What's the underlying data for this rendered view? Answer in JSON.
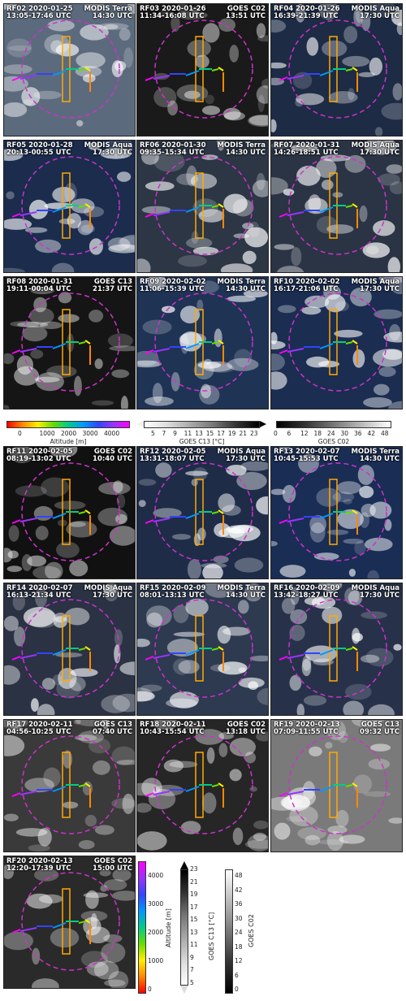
{
  "panels": [
    {
      "id": "RF02",
      "date": "2020-01-25",
      "times": "13:05-17:46 UTC",
      "sat": "MODIS Terra",
      "sat_time": "14:30 UTC",
      "bg": "#5c6a7d"
    },
    {
      "id": "RF03",
      "date": "2020-01-26",
      "times": "11:34-16:08 UTC",
      "sat": "GOES C02",
      "sat_time": "13:51 UTC",
      "bg": "#1a1a1a"
    },
    {
      "id": "RF04",
      "date": "2020-01-26",
      "times": "16:39-21:39 UTC",
      "sat": "MODIS Aqua",
      "sat_time": "17:30 UTC",
      "bg": "#1d2b45"
    },
    {
      "id": "RF05",
      "date": "2020-01-28",
      "times": "20:13-00:55 UTC",
      "sat": "MODIS Aqua",
      "sat_time": "17:30 UTC",
      "bg": "#1b2c4d"
    },
    {
      "id": "RF06",
      "date": "2020-01-30",
      "times": "09:35-15:34 UTC",
      "sat": "MODIS Terra",
      "sat_time": "14:30 UTC",
      "bg": "#2c3645"
    },
    {
      "id": "RF07",
      "date": "2020-01-31",
      "times": "14:26-18:51 UTC",
      "sat": "MODIS Aqua",
      "sat_time": "17:30 UTC",
      "bg": "#2b3444"
    },
    {
      "id": "RF08",
      "date": "2020-01-31",
      "times": "19:11-00:04 UTC",
      "sat": "GOES C13",
      "sat_time": "21:37 UTC",
      "bg": "#151515"
    },
    {
      "id": "RF09",
      "date": "2020-02-02",
      "times": "11:06-15:39 UTC",
      "sat": "MODIS Terra",
      "sat_time": "14:30 UTC",
      "bg": "#1f3355"
    },
    {
      "id": "RF10",
      "date": "2020-02-02",
      "times": "16:17-21:06 UTC",
      "sat": "MODIS Aqua",
      "sat_time": "17:30 UTC",
      "bg": "#1b2d50"
    },
    {
      "id": "RF11",
      "date": "2020-02-05",
      "times": "08:19-13:02 UTC",
      "sat": "GOES C02",
      "sat_time": "10:40 UTC",
      "bg": "#111111"
    },
    {
      "id": "RF12",
      "date": "2020-02-05",
      "times": "13:31-18:07 UTC",
      "sat": "MODIS Aqua",
      "sat_time": "17:30 UTC",
      "bg": "#1e2c48"
    },
    {
      "id": "RF13",
      "date": "2020-02-07",
      "times": "10:45-15:53 UTC",
      "sat": "MODIS Terra",
      "sat_time": "14:30 UTC",
      "bg": "#1a2d55"
    },
    {
      "id": "RF14",
      "date": "2020-02-07",
      "times": "16:13-21:34 UTC",
      "sat": "MODIS Aqua",
      "sat_time": "17:30 UTC",
      "bg": "#2a3244"
    },
    {
      "id": "RF15",
      "date": "2020-02-09",
      "times": "08:01-13:13 UTC",
      "sat": "MODIS Terra",
      "sat_time": "14:30 UTC",
      "bg": "#2d3a50"
    },
    {
      "id": "RF16",
      "date": "2020-02-09",
      "times": "13:42-18:27 UTC",
      "sat": "MODIS Aqua",
      "sat_time": "17:30 UTC",
      "bg": "#27324a"
    },
    {
      "id": "RF17",
      "date": "2020-02-11",
      "times": "04:56-10:25 UTC",
      "sat": "GOES C13",
      "sat_time": "07:40 UTC",
      "bg": "#3a3a3a"
    },
    {
      "id": "RF18",
      "date": "2020-02-11",
      "times": "10:43-15:54 UTC",
      "sat": "GOES C02",
      "sat_time": "13:18 UTC",
      "bg": "#262626"
    },
    {
      "id": "RF19",
      "date": "2020-02-13",
      "times": "07:09-11:55 UTC",
      "sat": "GOES C13",
      "sat_time": "09:32 UTC",
      "bg": "#7a7a7a"
    },
    {
      "id": "RF20",
      "date": "2020-02-13",
      "times": "12:20-17:39 UTC",
      "sat": "GOES C02",
      "sat_time": "15:00 UTC",
      "bg": "#2a2a2a"
    }
  ],
  "colorbars_horizontal": {
    "altitude": {
      "label": "Altitude [m]",
      "ticks": [
        "0",
        "1000",
        "2000",
        "3000",
        "4000"
      ]
    },
    "c13": {
      "label": "GOES C13 [°C]",
      "ticks": [
        "5",
        "7",
        "9",
        "11",
        "13",
        "15",
        "17",
        "19",
        "21",
        "23"
      ]
    },
    "c02": {
      "label": "GOES C02",
      "ticks": [
        "0",
        "6",
        "12",
        "18",
        "24",
        "30",
        "36",
        "42",
        "48"
      ]
    }
  },
  "colorbars_vertical": {
    "altitude": {
      "label": "Altitude [m]",
      "ticks": [
        "0",
        "1000",
        "2000",
        "3000",
        "4000"
      ]
    },
    "c13": {
      "label": "GOES C13 [°C]",
      "ticks": [
        "5",
        "7",
        "9",
        "11",
        "13",
        "15",
        "17",
        "19",
        "21",
        "23"
      ]
    },
    "c02": {
      "label": "GOES C02",
      "ticks": [
        "0",
        "6",
        "12",
        "18",
        "24",
        "30",
        "36",
        "42",
        "48"
      ]
    }
  },
  "colors": {
    "circle": "#cc33cc",
    "box": "#ffaa00",
    "track_end": "#ff2200"
  }
}
